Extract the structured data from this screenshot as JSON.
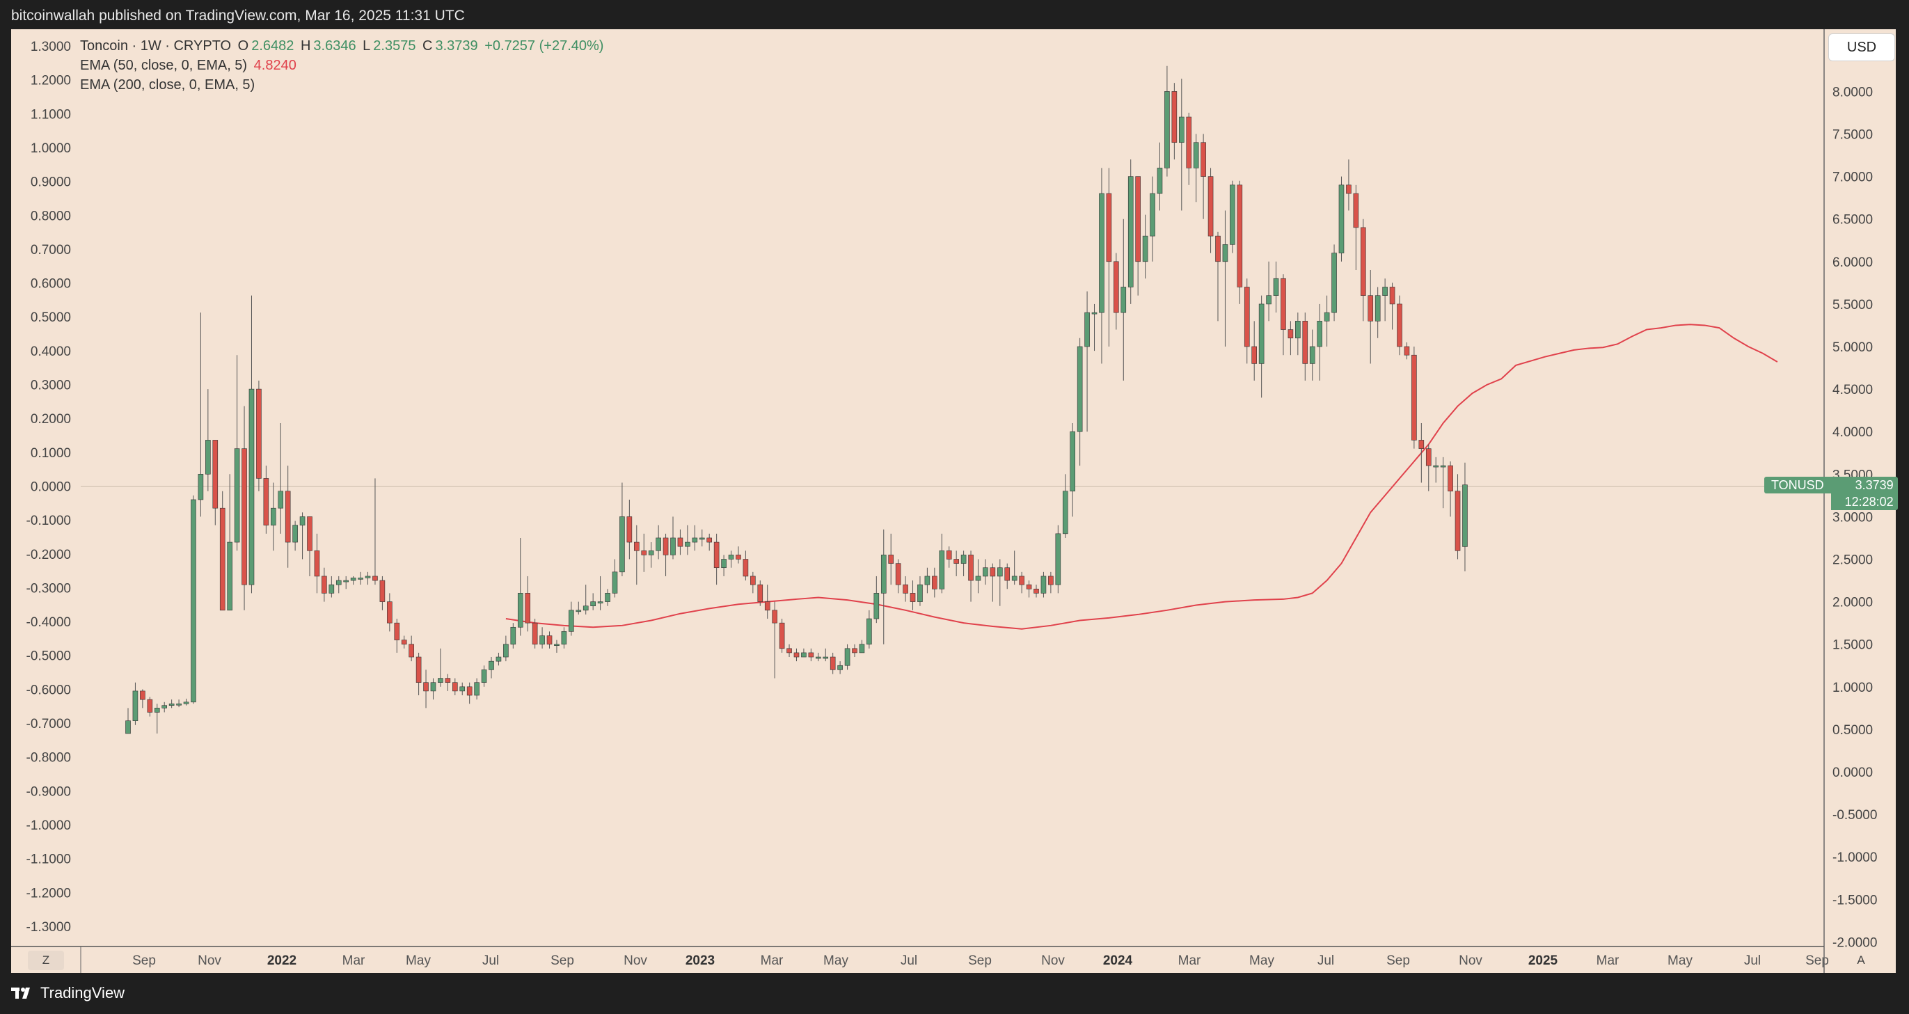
{
  "header": {
    "published_text": "bitcoinwallah published on TradingView.com, Mar 16, 2025 11:31 UTC"
  },
  "legend": {
    "title": "Toncoin · 1W · CRYPTO",
    "ohlc": {
      "o_label": "O",
      "o": "2.6482",
      "h_label": "H",
      "h": "3.6346",
      "l_label": "L",
      "l": "2.3575",
      "c_label": "C",
      "c": "3.3739",
      "change": "+0.7257 (+27.40%)"
    },
    "ema50_label": "EMA (50, close, 0, EMA, 5)",
    "ema50_value": "4.8240",
    "ema200_label": "EMA (200, close, 0, EMA, 5)"
  },
  "toolbar": {
    "currency": "USD",
    "zoom": "Z",
    "auto": "A"
  },
  "price_label": {
    "symbol": "TONUSD",
    "price": "3.3739",
    "countdown": "12:28:02"
  },
  "footer": {
    "brand": "TradingView"
  },
  "colors": {
    "up": "#5b9c74",
    "down": "#d9534a",
    "ema": "#e0414b",
    "background": "#f4e3d4",
    "frame": "#1f1f1f"
  },
  "chart_data": {
    "type": "candlestick",
    "title": "Toncoin · 1W · CRYPTO",
    "interval": "1W",
    "left_axis_ticks": [
      "1.3000",
      "1.2000",
      "1.1000",
      "1.0000",
      "0.9000",
      "0.8000",
      "0.7000",
      "0.6000",
      "0.5000",
      "0.4000",
      "0.3000",
      "0.2000",
      "0.1000",
      "0.0000",
      "-0.1000",
      "-0.2000",
      "-0.3000",
      "-0.4000",
      "-0.5000",
      "-0.6000",
      "-0.7000",
      "-0.8000",
      "-0.9000",
      "-1.0000",
      "-1.1000",
      "-1.2000",
      "-1.3000"
    ],
    "right_axis_ticks": [
      "8.0000",
      "7.5000",
      "7.0000",
      "6.5000",
      "6.0000",
      "5.5000",
      "5.0000",
      "4.5000",
      "4.0000",
      "3.5000",
      "3.0000",
      "2.5000",
      "2.0000",
      "1.5000",
      "1.0000",
      "0.5000",
      "0.0000",
      "-0.5000",
      "-1.0000",
      "-1.5000",
      "-2.0000"
    ],
    "x_ticks": [
      "Sep",
      "Nov",
      "2022",
      "Mar",
      "May",
      "Jul",
      "Sep",
      "Nov",
      "2023",
      "Mar",
      "May",
      "Jul",
      "Sep",
      "Nov",
      "2024",
      "Mar",
      "May",
      "Jul",
      "Sep",
      "Nov",
      "2025",
      "Mar",
      "May",
      "Jul",
      "Sep"
    ],
    "y_range": [
      -2.0,
      8.6
    ],
    "x_start": "2021-08-16",
    "candles": [
      [
        0.45,
        0.6,
        0.75,
        0.45
      ],
      [
        0.6,
        0.95,
        1.05,
        0.55
      ],
      [
        0.95,
        0.85,
        0.97,
        0.75
      ],
      [
        0.85,
        0.7,
        0.88,
        0.65
      ],
      [
        0.7,
        0.75,
        0.8,
        0.45
      ],
      [
        0.75,
        0.78,
        0.82,
        0.7
      ],
      [
        0.78,
        0.8,
        0.85,
        0.75
      ],
      [
        0.8,
        0.8,
        0.85,
        0.76
      ],
      [
        0.8,
        0.82,
        0.86,
        0.78
      ],
      [
        0.82,
        3.2,
        3.25,
        0.8
      ],
      [
        3.2,
        3.5,
        5.4,
        3.0
      ],
      [
        3.5,
        3.9,
        4.5,
        3.3
      ],
      [
        3.9,
        3.1,
        3.9,
        2.9
      ],
      [
        3.1,
        1.9,
        3.3,
        1.9
      ],
      [
        1.9,
        2.7,
        3.5,
        1.9
      ],
      [
        2.7,
        3.8,
        4.9,
        2.6
      ],
      [
        3.8,
        2.2,
        4.3,
        1.9
      ],
      [
        2.2,
        4.5,
        5.6,
        2.1
      ],
      [
        4.5,
        3.45,
        4.6,
        3.3
      ],
      [
        3.45,
        2.9,
        3.6,
        2.8
      ],
      [
        2.9,
        3.1,
        3.4,
        2.6
      ],
      [
        3.1,
        3.3,
        4.1,
        2.8
      ],
      [
        3.3,
        2.7,
        3.6,
        2.4
      ],
      [
        2.7,
        2.9,
        2.95,
        2.6
      ],
      [
        2.9,
        3.0,
        3.05,
        2.5
      ],
      [
        3.0,
        2.6,
        3.0,
        2.3
      ],
      [
        2.6,
        2.3,
        2.8,
        2.1
      ],
      [
        2.3,
        2.1,
        2.4,
        2.0
      ],
      [
        2.1,
        2.2,
        2.3,
        2.05
      ],
      [
        2.2,
        2.25,
        2.3,
        2.1
      ],
      [
        2.25,
        2.25,
        2.3,
        2.15
      ],
      [
        2.25,
        2.28,
        2.3,
        2.2
      ],
      [
        2.28,
        2.28,
        2.35,
        2.2
      ],
      [
        2.28,
        2.3,
        2.35,
        2.2
      ],
      [
        2.3,
        2.25,
        3.45,
        2.2
      ],
      [
        2.25,
        2.0,
        2.3,
        1.9
      ],
      [
        2.0,
        1.75,
        2.1,
        1.65
      ],
      [
        1.75,
        1.55,
        1.8,
        1.4
      ],
      [
        1.55,
        1.5,
        1.6,
        1.45
      ],
      [
        1.5,
        1.35,
        1.6,
        1.3
      ],
      [
        1.35,
        1.05,
        1.4,
        0.9
      ],
      [
        1.05,
        0.95,
        1.2,
        0.75
      ],
      [
        0.95,
        1.05,
        1.1,
        0.85
      ],
      [
        1.05,
        1.1,
        1.45,
        1.0
      ],
      [
        1.1,
        1.05,
        1.15,
        0.95
      ],
      [
        1.05,
        0.95,
        1.1,
        0.9
      ],
      [
        0.95,
        1.0,
        1.05,
        0.9
      ],
      [
        1.0,
        0.9,
        1.05,
        0.8
      ],
      [
        0.9,
        1.05,
        1.1,
        0.85
      ],
      [
        1.05,
        1.2,
        1.25,
        1.0
      ],
      [
        1.2,
        1.3,
        1.35,
        1.1
      ],
      [
        1.3,
        1.35,
        1.4,
        1.25
      ],
      [
        1.35,
        1.5,
        1.6,
        1.3
      ],
      [
        1.5,
        1.7,
        1.75,
        1.45
      ],
      [
        1.7,
        2.1,
        2.75,
        1.6
      ],
      [
        2.1,
        1.75,
        2.3,
        1.65
      ],
      [
        1.75,
        1.5,
        1.8,
        1.45
      ],
      [
        1.5,
        1.6,
        1.7,
        1.45
      ],
      [
        1.6,
        1.5,
        1.65,
        1.45
      ],
      [
        1.5,
        1.5,
        1.55,
        1.4
      ],
      [
        1.5,
        1.65,
        1.7,
        1.45
      ],
      [
        1.65,
        1.9,
        2.0,
        1.6
      ],
      [
        1.9,
        1.9,
        2.0,
        1.85
      ],
      [
        1.9,
        1.95,
        2.2,
        1.85
      ],
      [
        1.95,
        2.0,
        2.1,
        1.9
      ],
      [
        2.0,
        2.0,
        2.3,
        1.9
      ],
      [
        2.0,
        2.1,
        2.15,
        1.95
      ],
      [
        2.1,
        2.35,
        2.5,
        2.05
      ],
      [
        2.35,
        3.0,
        3.4,
        2.3
      ],
      [
        3.0,
        2.7,
        3.2,
        2.5
      ],
      [
        2.7,
        2.6,
        2.9,
        2.2
      ],
      [
        2.6,
        2.55,
        2.8,
        2.35
      ],
      [
        2.55,
        2.6,
        2.7,
        2.4
      ],
      [
        2.6,
        2.75,
        2.9,
        2.5
      ],
      [
        2.75,
        2.55,
        2.8,
        2.3
      ],
      [
        2.55,
        2.75,
        3.0,
        2.5
      ],
      [
        2.75,
        2.65,
        2.85,
        2.55
      ],
      [
        2.65,
        2.7,
        2.9,
        2.55
      ],
      [
        2.7,
        2.75,
        2.9,
        2.6
      ],
      [
        2.75,
        2.75,
        2.85,
        2.65
      ],
      [
        2.75,
        2.7,
        2.8,
        2.6
      ],
      [
        2.7,
        2.4,
        2.8,
        2.2
      ],
      [
        2.4,
        2.5,
        2.55,
        2.3
      ],
      [
        2.5,
        2.55,
        2.6,
        2.4
      ],
      [
        2.55,
        2.5,
        2.65,
        2.45
      ],
      [
        2.5,
        2.3,
        2.6,
        2.25
      ],
      [
        2.3,
        2.2,
        2.35,
        2.1
      ],
      [
        2.2,
        2.0,
        2.25,
        1.95
      ],
      [
        2.0,
        1.9,
        2.2,
        1.8
      ],
      [
        1.9,
        1.75,
        2.0,
        1.1
      ],
      [
        1.75,
        1.45,
        1.8,
        1.4
      ],
      [
        1.45,
        1.4,
        1.5,
        1.35
      ],
      [
        1.4,
        1.35,
        1.45,
        1.3
      ],
      [
        1.35,
        1.4,
        1.45,
        1.35
      ],
      [
        1.4,
        1.35,
        1.45,
        1.3
      ],
      [
        1.35,
        1.35,
        1.4,
        1.3
      ],
      [
        1.35,
        1.35,
        1.45,
        1.3
      ],
      [
        1.35,
        1.2,
        1.4,
        1.15
      ],
      [
        1.2,
        1.25,
        1.3,
        1.15
      ],
      [
        1.25,
        1.45,
        1.5,
        1.2
      ],
      [
        1.45,
        1.4,
        1.5,
        1.35
      ],
      [
        1.4,
        1.5,
        1.55,
        1.4
      ],
      [
        1.5,
        1.8,
        1.9,
        1.45
      ],
      [
        1.8,
        2.1,
        2.3,
        1.75
      ],
      [
        2.1,
        2.55,
        2.85,
        1.5
      ],
      [
        2.55,
        2.45,
        2.8,
        2.2
      ],
      [
        2.45,
        2.2,
        2.5,
        2.1
      ],
      [
        2.2,
        2.1,
        2.3,
        2.0
      ],
      [
        2.1,
        2.0,
        2.25,
        1.9
      ],
      [
        2.0,
        2.2,
        2.3,
        1.95
      ],
      [
        2.2,
        2.3,
        2.4,
        2.1
      ],
      [
        2.3,
        2.15,
        2.4,
        2.05
      ],
      [
        2.15,
        2.6,
        2.8,
        2.1
      ],
      [
        2.6,
        2.5,
        2.65,
        2.4
      ],
      [
        2.5,
        2.45,
        2.6,
        2.3
      ],
      [
        2.45,
        2.55,
        2.6,
        2.3
      ],
      [
        2.55,
        2.25,
        2.6,
        2.0
      ],
      [
        2.25,
        2.3,
        2.5,
        2.1
      ],
      [
        2.3,
        2.4,
        2.5,
        2.2
      ],
      [
        2.4,
        2.3,
        2.45,
        2.0
      ],
      [
        2.3,
        2.4,
        2.5,
        1.95
      ],
      [
        2.4,
        2.25,
        2.45,
        2.15
      ],
      [
        2.25,
        2.3,
        2.6,
        2.2
      ],
      [
        2.3,
        2.2,
        2.35,
        2.1
      ],
      [
        2.2,
        2.15,
        2.25,
        2.05
      ],
      [
        2.15,
        2.1,
        2.2,
        2.05
      ],
      [
        2.1,
        2.3,
        2.35,
        2.05
      ],
      [
        2.3,
        2.2,
        2.35,
        2.1
      ],
      [
        2.2,
        2.8,
        2.9,
        2.1
      ],
      [
        2.8,
        3.3,
        3.5,
        2.75
      ],
      [
        3.3,
        4.0,
        4.1,
        3.0
      ],
      [
        4.0,
        5.0,
        5.1,
        3.6
      ],
      [
        5.0,
        5.4,
        5.65,
        4.0
      ],
      [
        5.4,
        5.4,
        5.5,
        4.95
      ],
      [
        5.4,
        6.8,
        7.1,
        4.8
      ],
      [
        6.8,
        6.0,
        7.1,
        5.0
      ],
      [
        6.0,
        5.4,
        6.1,
        5.2
      ],
      [
        5.4,
        5.7,
        6.5,
        4.6
      ],
      [
        5.7,
        7.0,
        7.2,
        5.5
      ],
      [
        7.0,
        6.0,
        7.0,
        5.6
      ],
      [
        6.0,
        6.3,
        6.55,
        5.8
      ],
      [
        6.3,
        6.8,
        7.0,
        6.0
      ],
      [
        6.8,
        7.1,
        7.4,
        6.6
      ],
      [
        7.1,
        8.0,
        8.3,
        7.0
      ],
      [
        8.0,
        7.4,
        8.1,
        7.2
      ],
      [
        7.4,
        7.7,
        8.15,
        6.6
      ],
      [
        7.7,
        7.1,
        7.75,
        6.9
      ],
      [
        7.1,
        7.4,
        7.5,
        6.7
      ],
      [
        7.4,
        7.0,
        7.5,
        6.5
      ],
      [
        7.0,
        6.3,
        7.1,
        6.1
      ],
      [
        6.3,
        6.0,
        6.35,
        5.3
      ],
      [
        6.0,
        6.2,
        6.6,
        5.0
      ],
      [
        6.2,
        6.9,
        6.95,
        6.1
      ],
      [
        6.9,
        5.7,
        6.95,
        5.5
      ],
      [
        5.7,
        5.0,
        5.8,
        4.8
      ],
      [
        5.0,
        4.8,
        5.3,
        4.6
      ],
      [
        4.8,
        5.5,
        5.6,
        4.4
      ],
      [
        5.5,
        5.6,
        6.0,
        5.3
      ],
      [
        5.6,
        5.8,
        6.0,
        5.4
      ],
      [
        5.8,
        5.2,
        5.85,
        4.9
      ],
      [
        5.2,
        5.1,
        5.3,
        4.9
      ],
      [
        5.1,
        5.3,
        5.4,
        4.9
      ],
      [
        5.3,
        4.8,
        5.4,
        4.6
      ],
      [
        4.8,
        5.0,
        5.2,
        4.6
      ],
      [
        5.0,
        5.3,
        5.5,
        4.6
      ],
      [
        5.3,
        5.4,
        5.6,
        5.0
      ],
      [
        5.4,
        6.1,
        6.2,
        5.3
      ],
      [
        6.1,
        6.9,
        7.0,
        6.0
      ],
      [
        6.9,
        6.8,
        7.2,
        6.6
      ],
      [
        6.8,
        6.4,
        6.9,
        5.9
      ],
      [
        6.4,
        5.6,
        6.5,
        5.3
      ],
      [
        5.6,
        5.3,
        5.9,
        4.8
      ],
      [
        5.3,
        5.6,
        5.7,
        5.1
      ],
      [
        5.6,
        5.7,
        5.8,
        5.3
      ],
      [
        5.7,
        5.5,
        5.75,
        5.2
      ],
      [
        5.5,
        5.0,
        5.6,
        4.9
      ],
      [
        5.0,
        4.9,
        5.05,
        4.85
      ],
      [
        4.9,
        3.9,
        5.0,
        3.8
      ],
      [
        3.9,
        3.8,
        4.1,
        3.4
      ],
      [
        3.8,
        3.6,
        3.85,
        3.3
      ],
      [
        3.6,
        3.6,
        3.7,
        3.4
      ],
      [
        3.6,
        3.6,
        3.7,
        3.1
      ],
      [
        3.6,
        3.3,
        3.65,
        3.0
      ],
      [
        3.3,
        2.6,
        3.5,
        2.5
      ],
      [
        2.648,
        3.374,
        3.635,
        2.358
      ]
    ],
    "ema50": [
      [
        52,
        1.8
      ],
      [
        56,
        1.75
      ],
      [
        60,
        1.72
      ],
      [
        64,
        1.7
      ],
      [
        68,
        1.72
      ],
      [
        72,
        1.78
      ],
      [
        76,
        1.86
      ],
      [
        80,
        1.92
      ],
      [
        84,
        1.97
      ],
      [
        88,
        2.0
      ],
      [
        92,
        2.03
      ],
      [
        95,
        2.05
      ],
      [
        99,
        2.02
      ],
      [
        103,
        1.97
      ],
      [
        107,
        1.9
      ],
      [
        111,
        1.82
      ],
      [
        115,
        1.75
      ],
      [
        119,
        1.71
      ],
      [
        123,
        1.68
      ],
      [
        127,
        1.72
      ],
      [
        131,
        1.78
      ],
      [
        135,
        1.81
      ],
      [
        139,
        1.85
      ],
      [
        143,
        1.9
      ],
      [
        147,
        1.96
      ],
      [
        151,
        2.0
      ],
      [
        155,
        2.02
      ],
      [
        159,
        2.03
      ],
      [
        161,
        2.05
      ],
      [
        163,
        2.1
      ],
      [
        165,
        2.25
      ],
      [
        167,
        2.45
      ],
      [
        169,
        2.75
      ],
      [
        171,
        3.05
      ],
      [
        173,
        3.25
      ],
      [
        175,
        3.45
      ],
      [
        177,
        3.65
      ],
      [
        179,
        3.85
      ],
      [
        181,
        4.1
      ],
      [
        183,
        4.3
      ],
      [
        185,
        4.45
      ],
      [
        187,
        4.55
      ],
      [
        189,
        4.62
      ],
      [
        191,
        4.78
      ],
      [
        193,
        4.83
      ],
      [
        195,
        4.88
      ],
      [
        197,
        4.92
      ],
      [
        199,
        4.96
      ],
      [
        201,
        4.98
      ],
      [
        203,
        4.99
      ],
      [
        205,
        5.03
      ],
      [
        207,
        5.12
      ],
      [
        209,
        5.2
      ],
      [
        211,
        5.22
      ],
      [
        213,
        5.25
      ],
      [
        215,
        5.26
      ],
      [
        217,
        5.25
      ],
      [
        219,
        5.22
      ],
      [
        221,
        5.1
      ],
      [
        223,
        5.0
      ],
      [
        225,
        4.92
      ],
      [
        227,
        4.82
      ]
    ]
  }
}
